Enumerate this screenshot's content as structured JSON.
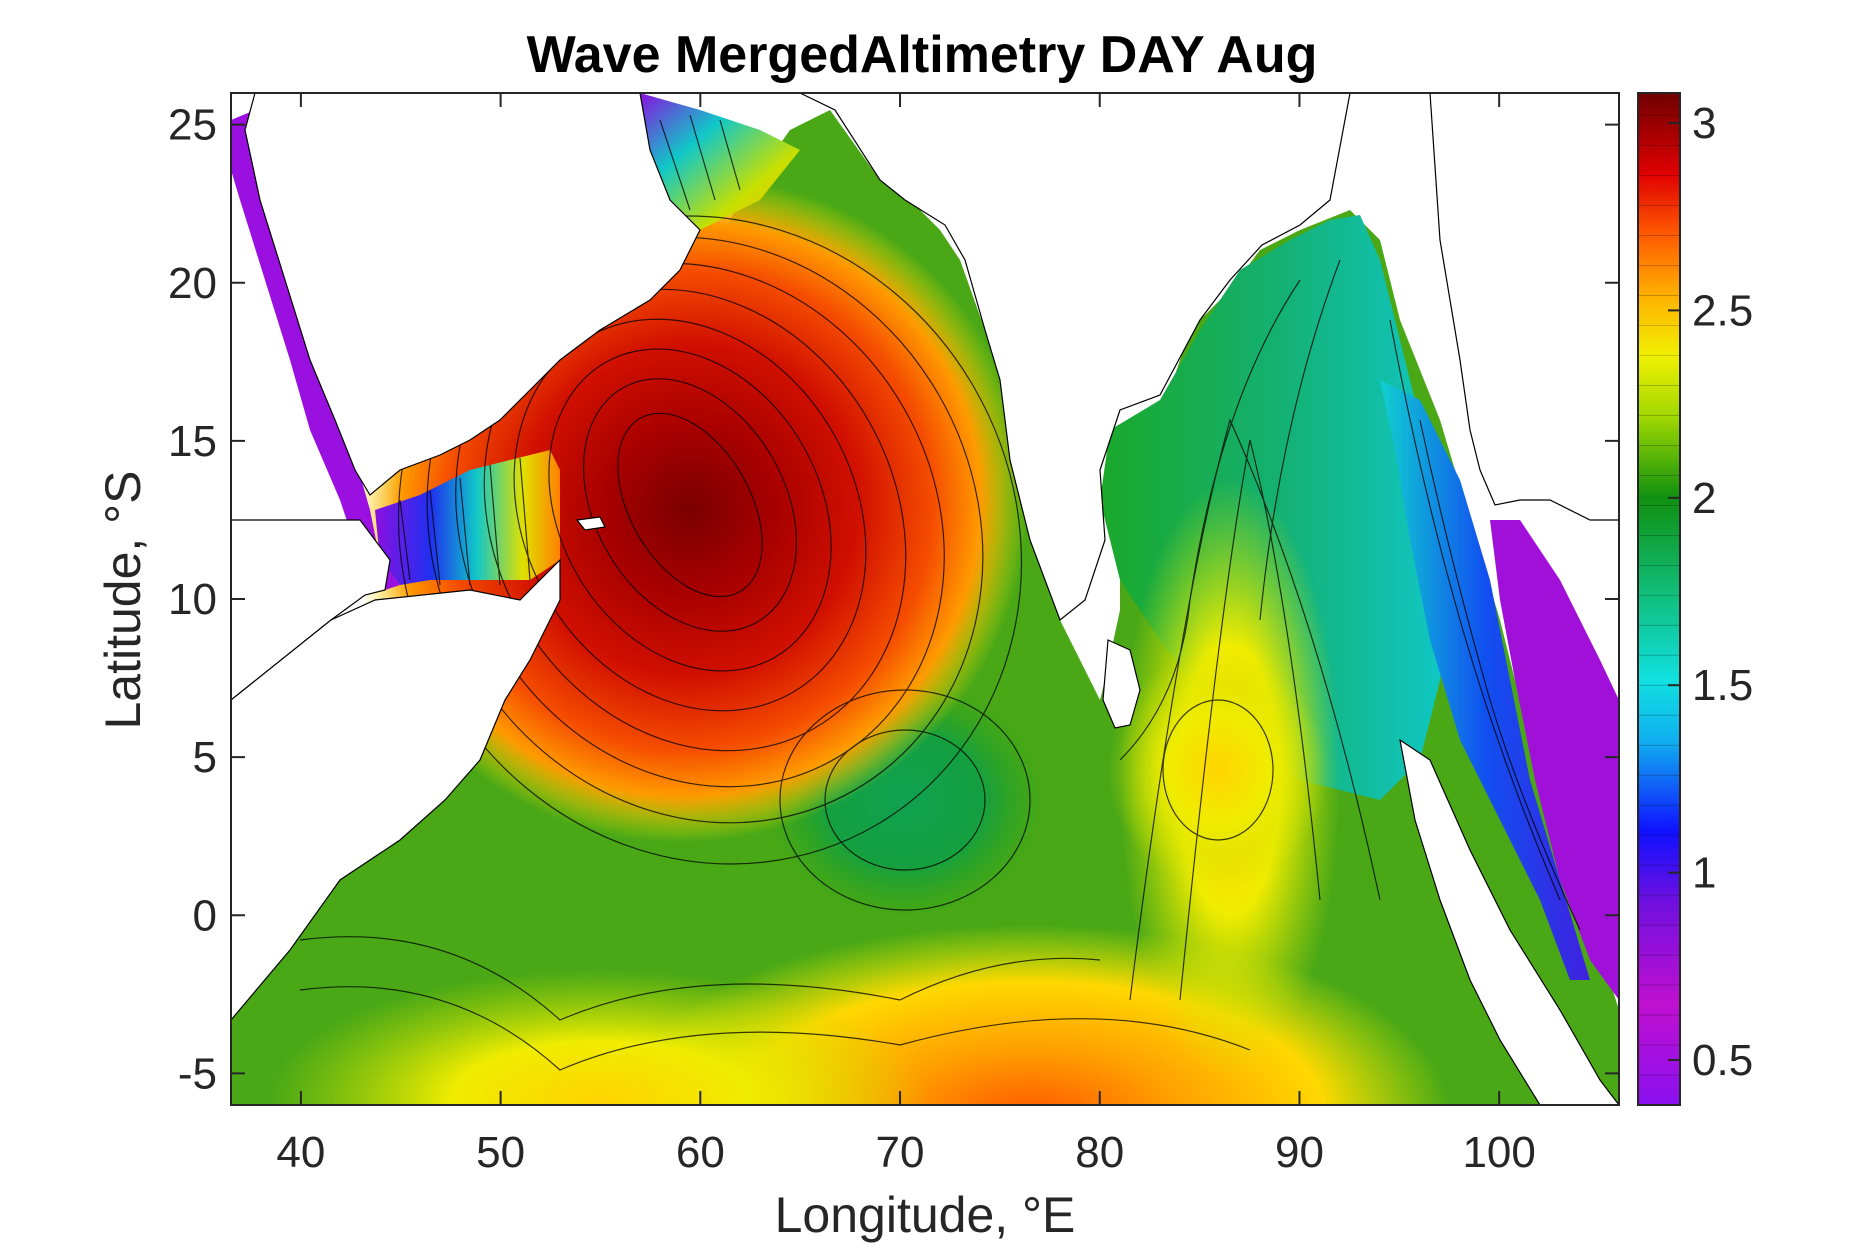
{
  "chart_data": {
    "type": "heatmap",
    "subtype": "filled-contour-map",
    "title": "Wave MergedAltimetry DAY Aug",
    "xlabel": "Longitude, °E",
    "ylabel": "Latitude, °S",
    "xlim": [
      36.5,
      106
    ],
    "ylim": [
      -6,
      26
    ],
    "xticks": [
      40,
      50,
      60,
      70,
      80,
      90,
      100
    ],
    "yticks": [
      25,
      20,
      15,
      10,
      5,
      0,
      -5
    ],
    "colorbar": {
      "range": [
        0.38,
        3.08
      ],
      "ticks": [
        "3",
        "2.5",
        "2",
        "1.5",
        "1",
        "0.5"
      ],
      "tick_values": [
        3,
        2.5,
        2,
        1.5,
        1,
        0.5
      ],
      "colormap": "jet-like purple→blue→cyan→green→yellow→orange→red→dark red"
    },
    "contour_levels_step": 0.08,
    "features": [
      {
        "name": "Arabian Sea maximum",
        "center": [
          59,
          13.5
        ],
        "value": 3.05
      },
      {
        "name": "secondary high central Indian Ocean",
        "center": [
          85.5,
          4
        ],
        "value": 2.4
      },
      {
        "name": "low south of India",
        "center": [
          72,
          3.5
        ],
        "value": 1.85
      },
      {
        "name": "southern high band",
        "center": [
          80,
          -6
        ],
        "value": 2.7
      }
    ],
    "grid": false
  }
}
